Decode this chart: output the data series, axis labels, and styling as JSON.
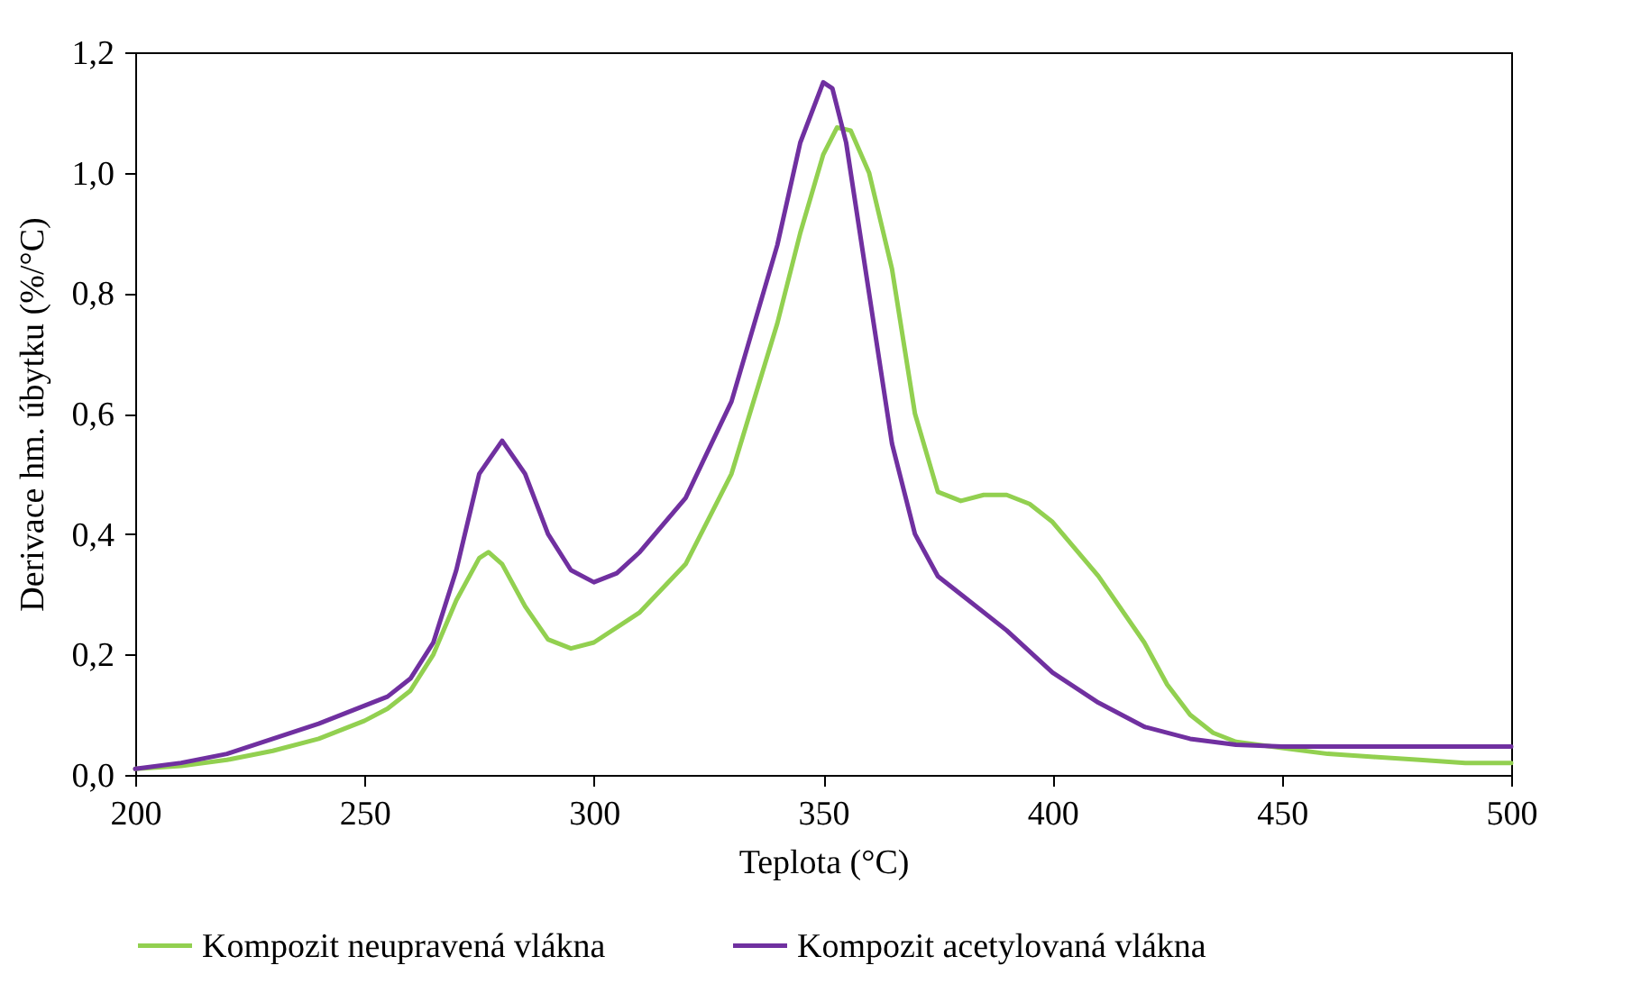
{
  "chart_data": {
    "type": "line",
    "xlabel": "Teplota (°C)",
    "ylabel": "Derivace hm. úbytku (%/°C)",
    "xlim": [
      200,
      500
    ],
    "xticks": [
      200,
      250,
      300,
      350,
      400,
      450,
      500
    ],
    "ylim": [
      0,
      1.2
    ],
    "yticks": [
      {
        "value": 0,
        "label": "0,0"
      },
      {
        "value": 0.2,
        "label": "0,2"
      },
      {
        "value": 0.4,
        "label": "0,4"
      },
      {
        "value": 0.6,
        "label": "0,6"
      },
      {
        "value": 0.8,
        "label": "0,8"
      },
      {
        "value": 1.0,
        "label": "1,0"
      },
      {
        "value": 1.2,
        "label": "1,2"
      }
    ],
    "grid": false,
    "legend": "bottom",
    "marker": "none",
    "line_style": "solid",
    "series": [
      {
        "name": "Kompozit  neupravená vlákna",
        "color": "#92d050",
        "x": [
          200,
          210,
          220,
          230,
          240,
          250,
          255,
          260,
          265,
          270,
          275,
          277,
          280,
          285,
          290,
          295,
          300,
          310,
          320,
          330,
          340,
          345,
          350,
          353,
          356,
          360,
          365,
          370,
          375,
          380,
          385,
          390,
          395,
          400,
          410,
          420,
          425,
          430,
          435,
          440,
          450,
          460,
          470,
          480,
          490,
          500
        ],
        "values": [
          0.01,
          0.015,
          0.025,
          0.04,
          0.06,
          0.09,
          0.11,
          0.14,
          0.2,
          0.29,
          0.36,
          0.37,
          0.35,
          0.28,
          0.225,
          0.21,
          0.22,
          0.27,
          0.35,
          0.5,
          0.75,
          0.9,
          1.03,
          1.075,
          1.07,
          1.0,
          0.84,
          0.6,
          0.47,
          0.455,
          0.465,
          0.465,
          0.45,
          0.42,
          0.33,
          0.22,
          0.15,
          0.1,
          0.07,
          0.055,
          0.045,
          0.035,
          0.03,
          0.025,
          0.02,
          0.02
        ]
      },
      {
        "name": "Kompozit  acetylovaná vlákna",
        "color": "#7030a0",
        "x": [
          200,
          210,
          220,
          230,
          240,
          250,
          255,
          260,
          265,
          270,
          275,
          280,
          285,
          290,
          295,
          300,
          305,
          310,
          320,
          330,
          340,
          345,
          350,
          352,
          355,
          360,
          365,
          370,
          375,
          380,
          390,
          400,
          410,
          420,
          430,
          440,
          450,
          500
        ],
        "values": [
          0.01,
          0.02,
          0.035,
          0.06,
          0.085,
          0.115,
          0.13,
          0.16,
          0.22,
          0.34,
          0.5,
          0.555,
          0.5,
          0.4,
          0.34,
          0.32,
          0.335,
          0.37,
          0.46,
          0.62,
          0.88,
          1.05,
          1.15,
          1.14,
          1.05,
          0.8,
          0.55,
          0.4,
          0.33,
          0.3,
          0.24,
          0.17,
          0.12,
          0.08,
          0.06,
          0.05,
          0.047,
          0.047
        ]
      }
    ]
  }
}
